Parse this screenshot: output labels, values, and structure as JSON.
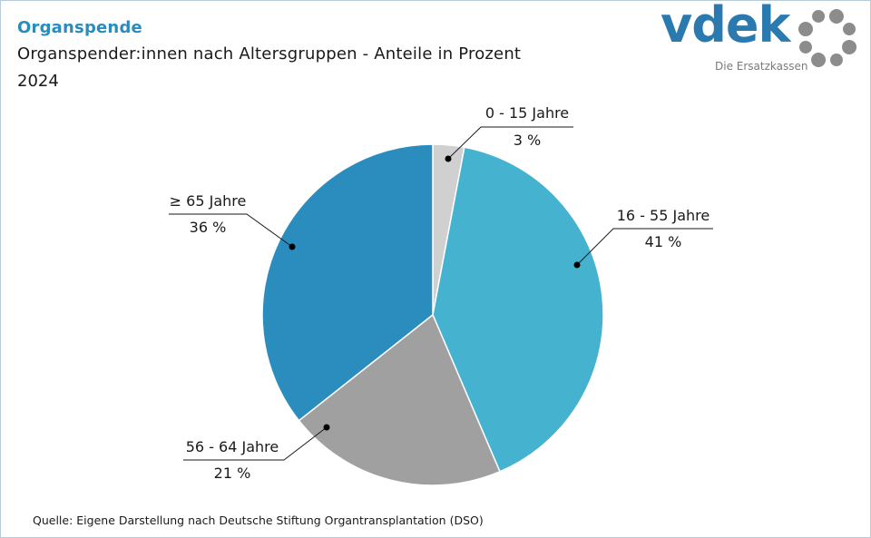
{
  "header": {
    "title": "Organspende",
    "subtitle": "Organspender:innen nach Altersgruppen - Anteile in Prozent",
    "year": "2024"
  },
  "logo": {
    "name": "vdek",
    "tagline": "Die Ersatzkassen"
  },
  "footer": {
    "source": "Quelle: Eigene Darstellung nach Deutsche Stiftung Organtransplantation (DSO)"
  },
  "colors": {
    "accent": "#2a8cbe",
    "slice_0_15": "#d0d0d0",
    "slice_16_55": "#45b2cf",
    "slice_56_64": "#a0a0a0",
    "slice_65_plus": "#2a8dbd",
    "logo_dots": "#8c8c8c"
  },
  "chart_data": {
    "type": "pie",
    "title": "Organspender:innen nach Altersgruppen - Anteile in Prozent",
    "start_angle_deg": 0,
    "direction": "clockwise",
    "slices": [
      {
        "label": "0 - 15 Jahre",
        "value": 3,
        "value_label": "3 %",
        "color": "#d0d0d0"
      },
      {
        "label": "16 - 55 Jahre",
        "value": 41,
        "value_label": "41 %",
        "color": "#45b2cf"
      },
      {
        "label": "56 - 64 Jahre",
        "value": 21,
        "value_label": "21 %",
        "color": "#a0a0a0"
      },
      {
        "label": "≥ 65 Jahre",
        "value": 36,
        "value_label": "36 %",
        "color": "#2a8dbd"
      }
    ]
  }
}
